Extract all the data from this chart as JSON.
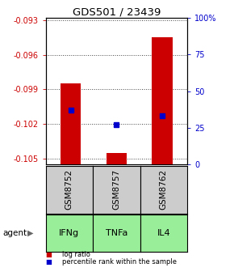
{
  "title": "GDS501 / 23439",
  "samples": [
    "GSM8752",
    "GSM8757",
    "GSM8762"
  ],
  "agents": [
    "IFNg",
    "TNFa",
    "IL4"
  ],
  "log_ratios": [
    -0.0985,
    -0.1045,
    -0.0945
  ],
  "percentile_ranks": [
    0.37,
    0.27,
    0.33
  ],
  "ylim_left": [
    -0.1055,
    -0.0928
  ],
  "ylim_right": [
    0.0,
    1.0
  ],
  "yticks_left": [
    -0.105,
    -0.102,
    -0.099,
    -0.096,
    -0.093
  ],
  "yticks_right": [
    0.0,
    0.25,
    0.5,
    0.75,
    1.0
  ],
  "ytick_labels_right": [
    "0",
    "25",
    "50",
    "75",
    "100%"
  ],
  "bar_color": "#cc0000",
  "dot_color": "#0000cc",
  "sample_box_color": "#cccccc",
  "agent_box_color": "#99ee99",
  "grid_color": "#444444",
  "title_color": "#000000",
  "left_tick_color": "#cc0000",
  "right_tick_color": "#0000cc",
  "bar_width": 0.45,
  "dot_size": 5
}
